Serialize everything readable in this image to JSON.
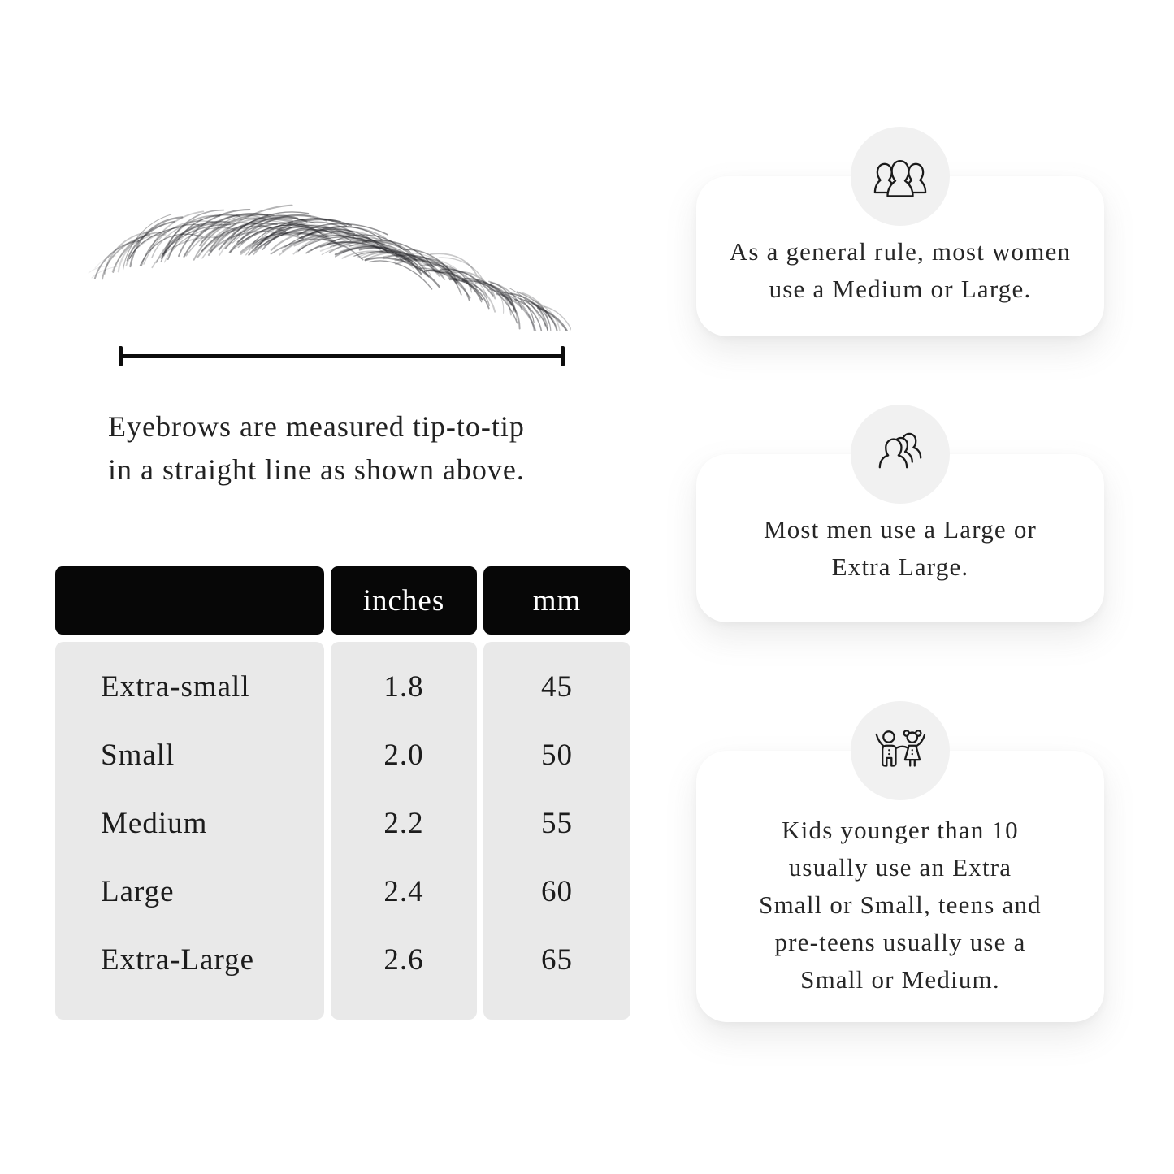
{
  "page": {
    "background": "#ffffff"
  },
  "measurement": {
    "caption_line1": "Eyebrows are measured tip-to-tip",
    "caption_line2": "in a straight line as shown above."
  },
  "size_table": {
    "headers": {
      "size": "",
      "inches": "inches",
      "mm": "mm"
    },
    "rows": [
      {
        "label": "Extra-small",
        "inches": "1.8",
        "mm": "45"
      },
      {
        "label": "Small",
        "inches": "2.0",
        "mm": "50"
      },
      {
        "label": "Medium",
        "inches": "2.2",
        "mm": "55"
      },
      {
        "label": "Large",
        "inches": "2.4",
        "mm": "60"
      },
      {
        "label": "Extra-Large",
        "inches": "2.6",
        "mm": "65"
      }
    ],
    "header_bg": "#070707",
    "header_text_color": "#ffffff",
    "body_bg": "#e9e9e9"
  },
  "cards": [
    {
      "icon": "women-group-icon",
      "lines": [
        "As a general rule, most women",
        "use a Medium or Large."
      ]
    },
    {
      "icon": "men-group-icon",
      "lines": [
        "Most men use a Large or",
        "Extra Large."
      ]
    },
    {
      "icon": "kids-icon",
      "lines": [
        "Kids younger than 10",
        "usually use an Extra",
        "Small or Small, teens and",
        "pre-teens usually use a",
        "Small or Medium."
      ]
    }
  ],
  "colors": {
    "text": "#1f1f1f",
    "icon_stroke": "#1a1a1a",
    "icon_circle_bg": "#f1f1f1",
    "card_bg": "#ffffff",
    "ruler": "#0c0c0c"
  }
}
